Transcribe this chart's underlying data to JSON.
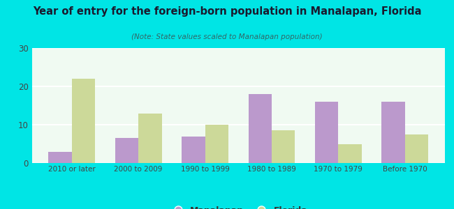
{
  "title": "Year of entry for the foreign-born population in Manalapan, Florida",
  "subtitle": "(Note: State values scaled to Manalapan population)",
  "categories": [
    "2010 or later",
    "2000 to 2009",
    "1990 to 1999",
    "1980 to 1989",
    "1970 to 1979",
    "Before 1970"
  ],
  "manalapan_values": [
    3,
    6.5,
    7,
    18,
    16,
    16
  ],
  "florida_values": [
    22,
    13,
    10,
    8.5,
    5,
    7.5
  ],
  "manalapan_color": "#bb99cc",
  "florida_color": "#ccd999",
  "background_outer": "#00e5e5",
  "background_inner": "#e8f5ee",
  "ylim": [
    0,
    30
  ],
  "yticks": [
    0,
    10,
    20,
    30
  ],
  "legend_manalapan": "Manalapan",
  "legend_florida": "Florida",
  "bar_width": 0.35,
  "title_color": "#1a1a2e",
  "subtitle_color": "#336666",
  "tick_color": "#444444"
}
